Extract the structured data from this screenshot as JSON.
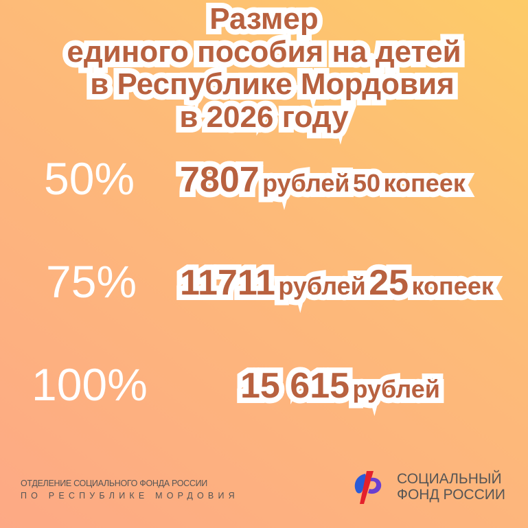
{
  "title": [
    "Размер",
    "единого пособия на детей",
    "в Республике Мордовия",
    "в 2026 году"
  ],
  "rows": [
    {
      "percent": "50%",
      "amount": "7807",
      "unit1": "рублей",
      "kop": "50",
      "unit2": "копеек"
    },
    {
      "percent": "75%",
      "amount": "11711",
      "unit1": "рублей",
      "kop": "25",
      "unit2": "копеек"
    },
    {
      "percent": "100%",
      "amount": "15 615",
      "unit1": "рублей"
    }
  ],
  "footer": {
    "line1": "ОТДЕЛЕНИЕ СОЦИАЛЬНОГО ФОНДА РОССИИ",
    "line2": "ПО РЕСПУБЛИКЕ МОРДОВИЯ"
  },
  "logo": {
    "line1": "СОЦИАЛЬНЫЙ",
    "line2": "ФОНД РОССИИ",
    "icon": "sfr-logo-icon"
  },
  "colors": {
    "text": "#b8613f",
    "outline": "#ffffff",
    "logo_blue": "#2a5bd7",
    "logo_red": "#e4202c"
  }
}
